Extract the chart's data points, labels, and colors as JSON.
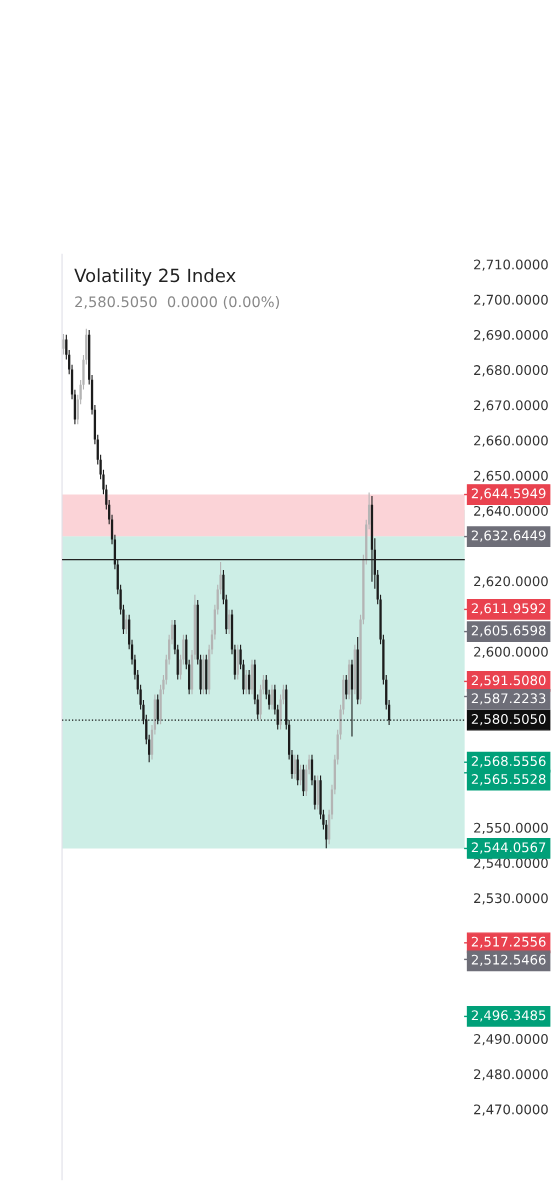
{
  "chart_data": {
    "type": "candlestick",
    "title": "Volatility 25 Index",
    "subtitle": "2,580.5050  0.0000 (0.00%)",
    "categories": [
      null,
      null,
      null,
      null,
      null,
      null,
      null,
      null,
      null,
      null,
      null,
      null,
      null,
      null,
      null,
      null,
      null,
      null,
      null,
      null,
      null,
      null,
      null,
      null,
      null,
      null,
      null,
      null,
      null,
      null,
      null,
      null,
      null,
      null,
      null,
      null,
      null,
      null,
      null,
      null,
      null,
      null,
      null,
      null,
      null,
      null,
      null,
      null,
      null,
      null,
      null,
      null,
      null,
      null,
      null,
      null,
      null,
      null,
      null,
      null,
      null,
      null,
      null,
      null,
      null,
      null,
      null,
      null,
      null,
      null,
      null,
      null,
      null,
      null,
      null,
      null,
      null,
      null,
      null,
      null,
      null,
      null,
      null,
      null,
      null,
      null,
      null,
      null,
      null,
      null,
      null,
      null,
      null,
      null,
      null,
      null,
      null,
      null,
      null,
      null,
      null,
      null,
      null,
      null,
      null,
      null,
      null,
      null,
      null,
      null,
      null,
      null,
      null,
      null,
      null,
      null,
      null,
      null,
      null,
      null,
      null,
      null,
      null,
      null,
      null,
      null,
      null,
      null,
      null,
      null,
      null,
      null,
      null,
      null,
      null,
      null,
      null,
      null,
      null,
      null,
      null
    ],
    "ohlc": [
      [
        2686.0,
        2690.0,
        2684.5,
        2688.6
      ],
      [
        2688.6,
        2689.8,
        2683.1,
        2684.3
      ],
      [
        2684.3,
        2685.5,
        2678.9,
        2680.1
      ],
      [
        2680.1,
        2681.3,
        2671.8,
        2673.0
      ],
      [
        2673.0,
        2674.2,
        2664.7,
        2665.9
      ],
      [
        2665.9,
        2672.8,
        2664.7,
        2671.6
      ],
      [
        2671.6,
        2677.0,
        2670.4,
        2675.8
      ],
      [
        2675.8,
        2684.1,
        2674.6,
        2682.9
      ],
      [
        2682.9,
        2691.5,
        2681.7,
        2690.0
      ],
      [
        2690.0,
        2691.2,
        2676.0,
        2677.2
      ],
      [
        2677.2,
        2678.4,
        2667.5,
        2668.7
      ],
      [
        2668.7,
        2669.9,
        2659.0,
        2660.2
      ],
      [
        2660.2,
        2661.4,
        2653.3,
        2654.5
      ],
      [
        2654.5,
        2655.7,
        2649.1,
        2650.3
      ],
      [
        2650.3,
        2651.5,
        2644.8,
        2646.0
      ],
      [
        2646.0,
        2647.2,
        2640.5,
        2641.7
      ],
      [
        2641.7,
        2642.9,
        2636.3,
        2637.5
      ],
      [
        2637.5,
        2638.7,
        2630.6,
        2631.8
      ],
      [
        2631.8,
        2633.0,
        2623.5,
        2624.7
      ],
      [
        2624.7,
        2625.9,
        2616.4,
        2617.6
      ],
      [
        2617.6,
        2618.8,
        2610.7,
        2611.9
      ],
      [
        2611.9,
        2613.1,
        2605.1,
        2606.3
      ],
      [
        2606.3,
        2610.3,
        2605.1,
        2609.1
      ],
      [
        2609.1,
        2610.3,
        2600.8,
        2602.0
      ],
      [
        2602.0,
        2603.2,
        2596.5,
        2597.7
      ],
      [
        2597.7,
        2598.9,
        2592.2,
        2593.4
      ],
      [
        2593.4,
        2594.6,
        2588.0,
        2589.2
      ],
      [
        2589.2,
        2590.4,
        2583.7,
        2584.9
      ],
      [
        2584.9,
        2586.1,
        2579.5,
        2580.7
      ],
      [
        2580.7,
        2581.9,
        2573.8,
        2575.0
      ],
      [
        2575.0,
        2576.2,
        2568.7,
        2570.7
      ],
      [
        2570.7,
        2579.0,
        2569.5,
        2577.8
      ],
      [
        2577.8,
        2587.6,
        2576.6,
        2586.4
      ],
      [
        2586.4,
        2587.6,
        2579.5,
        2580.7
      ],
      [
        2580.7,
        2590.4,
        2579.5,
        2589.2
      ],
      [
        2589.2,
        2593.2,
        2588.0,
        2592.0
      ],
      [
        2592.0,
        2598.9,
        2590.8,
        2597.7
      ],
      [
        2597.7,
        2604.6,
        2596.5,
        2603.4
      ],
      [
        2603.4,
        2608.8,
        2602.2,
        2607.6
      ],
      [
        2607.6,
        2608.8,
        2599.4,
        2600.6
      ],
      [
        2600.6,
        2601.8,
        2592.2,
        2593.4
      ],
      [
        2593.4,
        2598.9,
        2592.2,
        2597.7
      ],
      [
        2597.7,
        2604.6,
        2596.5,
        2603.4
      ],
      [
        2603.4,
        2604.6,
        2595.1,
        2596.3
      ],
      [
        2596.3,
        2597.5,
        2588.0,
        2589.2
      ],
      [
        2589.2,
        2600.3,
        2588.0,
        2599.1
      ],
      [
        2599.1,
        2616.0,
        2597.9,
        2613.3
      ],
      [
        2613.3,
        2614.5,
        2596.5,
        2597.7
      ],
      [
        2597.7,
        2598.9,
        2588.0,
        2589.2
      ],
      [
        2589.2,
        2598.9,
        2588.0,
        2597.7
      ],
      [
        2597.7,
        2598.9,
        2588.0,
        2589.2
      ],
      [
        2589.2,
        2601.8,
        2588.0,
        2600.6
      ],
      [
        2600.6,
        2606.0,
        2599.4,
        2604.8
      ],
      [
        2604.8,
        2613.1,
        2603.6,
        2611.9
      ],
      [
        2611.9,
        2618.8,
        2610.7,
        2617.6
      ],
      [
        2617.6,
        2625.3,
        2616.4,
        2621.8
      ],
      [
        2621.8,
        2623.0,
        2613.6,
        2614.8
      ],
      [
        2614.8,
        2616.0,
        2605.1,
        2606.3
      ],
      [
        2606.3,
        2611.7,
        2605.1,
        2610.5
      ],
      [
        2610.5,
        2611.7,
        2599.4,
        2600.6
      ],
      [
        2600.6,
        2601.8,
        2592.2,
        2593.4
      ],
      [
        2593.4,
        2601.8,
        2592.2,
        2600.6
      ],
      [
        2600.6,
        2601.8,
        2595.1,
        2596.3
      ],
      [
        2596.3,
        2597.5,
        2588.0,
        2589.2
      ],
      [
        2589.2,
        2594.6,
        2588.0,
        2593.4
      ],
      [
        2593.4,
        2594.6,
        2588.0,
        2589.2
      ],
      [
        2589.2,
        2597.5,
        2588.0,
        2596.3
      ],
      [
        2596.3,
        2597.5,
        2585.2,
        2586.4
      ],
      [
        2586.4,
        2587.6,
        2580.9,
        2582.1
      ],
      [
        2582.1,
        2590.4,
        2580.9,
        2589.2
      ],
      [
        2589.2,
        2593.2,
        2588.0,
        2592.0
      ],
      [
        2592.0,
        2593.2,
        2586.6,
        2587.8
      ],
      [
        2587.8,
        2589.0,
        2583.7,
        2584.9
      ],
      [
        2584.9,
        2590.4,
        2583.7,
        2589.2
      ],
      [
        2589.2,
        2590.4,
        2582.3,
        2583.5
      ],
      [
        2583.5,
        2584.7,
        2578.0,
        2579.2
      ],
      [
        2579.2,
        2587.6,
        2578.0,
        2586.4
      ],
      [
        2586.4,
        2590.4,
        2585.2,
        2589.2
      ],
      [
        2589.2,
        2590.4,
        2578.0,
        2579.2
      ],
      [
        2579.2,
        2580.4,
        2569.5,
        2570.7
      ],
      [
        2570.7,
        2571.9,
        2564.0,
        2565.2
      ],
      [
        2565.2,
        2570.5,
        2564.0,
        2569.3
      ],
      [
        2569.3,
        2570.5,
        2562.2,
        2563.4
      ],
      [
        2563.4,
        2567.7,
        2562.2,
        2566.5
      ],
      [
        2566.5,
        2567.7,
        2559.1,
        2560.3
      ],
      [
        2560.3,
        2567.7,
        2559.1,
        2566.5
      ],
      [
        2566.5,
        2570.5,
        2565.3,
        2569.3
      ],
      [
        2569.3,
        2570.5,
        2562.2,
        2563.4
      ],
      [
        2563.4,
        2564.6,
        2555.3,
        2556.5
      ],
      [
        2556.5,
        2564.6,
        2555.3,
        2563.4
      ],
      [
        2563.4,
        2564.6,
        2552.5,
        2553.7
      ],
      [
        2553.7,
        2554.9,
        2549.6,
        2550.8
      ],
      [
        2550.8,
        2552.0,
        2544.3,
        2546.6
      ],
      [
        2546.6,
        2554.9,
        2545.4,
        2553.7
      ],
      [
        2553.7,
        2562.0,
        2552.5,
        2560.8
      ],
      [
        2560.8,
        2570.5,
        2559.6,
        2569.3
      ],
      [
        2569.3,
        2577.6,
        2568.1,
        2576.4
      ],
      [
        2576.4,
        2584.7,
        2575.2,
        2583.5
      ],
      [
        2583.5,
        2593.2,
        2582.3,
        2592.0
      ],
      [
        2592.0,
        2593.2,
        2586.6,
        2587.8
      ],
      [
        2587.8,
        2597.5,
        2586.6,
        2596.3
      ],
      [
        2596.3,
        2597.5,
        2576.0,
        2589.2
      ],
      [
        2589.2,
        2601.8,
        2588.0,
        2600.6
      ],
      [
        2600.6,
        2604.0,
        2585.2,
        2586.4
      ],
      [
        2586.4,
        2610.3,
        2585.2,
        2609.1
      ],
      [
        2609.1,
        2627.3,
        2607.9,
        2626.1
      ],
      [
        2626.1,
        2637.3,
        2624.9,
        2636.1
      ],
      [
        2636.1,
        2645.0,
        2634.9,
        2641.7
      ],
      [
        2641.7,
        2644.0,
        2620.0,
        2628.9
      ],
      [
        2628.9,
        2632.0,
        2618.0,
        2621.8
      ],
      [
        2621.8,
        2623.0,
        2613.6,
        2614.8
      ],
      [
        2614.8,
        2616.0,
        2602.2,
        2603.4
      ],
      [
        2603.4,
        2604.6,
        2590.8,
        2592.0
      ],
      [
        2592.0,
        2593.2,
        2583.7,
        2584.9
      ],
      [
        2584.9,
        2586.1,
        2579.3,
        2580.5
      ],
      null,
      null,
      null,
      null,
      null,
      null,
      null,
      null,
      null,
      null,
      null,
      null,
      null,
      null,
      null,
      null,
      null,
      null,
      null,
      null,
      null,
      null,
      null,
      null,
      null,
      null
    ],
    "ylim": [
      2450,
      2712.8
    ],
    "yticks": [
      {
        "value": 2470,
        "label": "2,470.0000"
      },
      {
        "value": 2480,
        "label": "2,480.0000"
      },
      {
        "value": 2490,
        "label": "2,490.0000"
      },
      {
        "value": 2530,
        "label": "2,530.0000"
      },
      {
        "value": 2540,
        "label": "2,540.0000"
      },
      {
        "value": 2550,
        "label": "2,550.0000"
      },
      {
        "value": 2600,
        "label": "2,600.0000"
      },
      {
        "value": 2620,
        "label": "2,620.0000"
      },
      {
        "value": 2640,
        "label": "2,640.0000"
      },
      {
        "value": 2650,
        "label": "2,650.0000"
      },
      {
        "value": 2660,
        "label": "2,660.0000"
      },
      {
        "value": 2670,
        "label": "2,670.0000"
      },
      {
        "value": 2680,
        "label": "2,680.0000"
      },
      {
        "value": 2690,
        "label": "2,690.0000"
      },
      {
        "value": 2700,
        "label": "2,700.0000"
      },
      {
        "value": 2710,
        "label": "2,710.0000"
      }
    ],
    "tick_labels": "y",
    "grid": false,
    "legend": false,
    "bands": [
      {
        "axis": "y",
        "from": 2632.6449,
        "to": 2640.3,
        "color": "#c3ece3"
      },
      {
        "axis": "y",
        "from": 2632.6449,
        "to": 2644.5949,
        "color": "#fbd3d7"
      },
      {
        "axis": "y",
        "from": 2544.0567,
        "to": 2632.6449,
        "color": "#cdeee6"
      }
    ],
    "ref_lines": [
      {
        "axis": "y",
        "value": 2626.1,
        "label": null,
        "color": "#222222",
        "line_style": "solid"
      },
      {
        "axis": "y",
        "value": 2580.505,
        "label": "2,580.5050",
        "color": "#0e0e0e",
        "line_style": "dotted"
      },
      {
        "axis": "y",
        "value": 2644.5949,
        "label": "2,644.5949",
        "color": "#e9424f"
      },
      {
        "axis": "y",
        "value": 2632.6449,
        "label": "2,632.6449",
        "color": "#6e6e78"
      },
      {
        "axis": "y",
        "value": 2611.9592,
        "label": "2,611.9592",
        "color": "#e9424f"
      },
      {
        "axis": "y",
        "value": 2605.6598,
        "label": "2,605.6598",
        "color": "#6e6e78"
      },
      {
        "axis": "y",
        "value": 2591.508,
        "label": "2,591.5080",
        "color": "#e9424f"
      },
      {
        "axis": "y",
        "value": 2587.2233,
        "label": "2,587.2233",
        "color": "#6e6e78"
      },
      {
        "axis": "y",
        "value": 2568.5556,
        "label": "2,568.5556",
        "color": "#00a079"
      },
      {
        "axis": "y",
        "value": 2565.5528,
        "label": "2,565.5528",
        "color": "#00a079"
      },
      {
        "axis": "y",
        "value": 2544.0567,
        "label": "2,544.0567",
        "color": "#00a079"
      },
      {
        "axis": "y",
        "value": 2517.2556,
        "label": "2,517.2556",
        "color": "#e9424f"
      },
      {
        "axis": "y",
        "value": 2512.5466,
        "label": "2,512.5466",
        "color": "#6e6e78"
      },
      {
        "axis": "y",
        "value": 2496.3485,
        "label": "2,496.3485",
        "color": "#00a079"
      }
    ]
  }
}
